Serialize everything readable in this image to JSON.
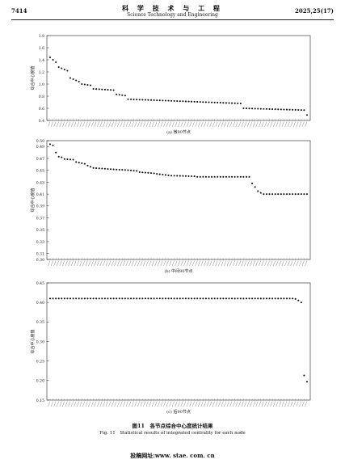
{
  "header": {
    "page_number": "7414",
    "journal_cn": "科 学 技 术 与 工 程",
    "journal_en": "Science Technology and Engineering",
    "issue": "2025,25(17)"
  },
  "figure": {
    "caption_zh": "图11　各节点综合中心度统计结果",
    "caption_en": "Fig. 11　Statistical results of integrated centrality for each node"
  },
  "footer": {
    "website": "投稿网址:www. stae. com. cn"
  },
  "chart_data": [
    {
      "type": "scatter",
      "title": "",
      "subtitle": "(a) 微90节点",
      "xlabel": "",
      "ylabel": "综合中心度值",
      "ylim": [
        0.4,
        1.8
      ],
      "yticks": [
        "0.4",
        "0.6",
        "0.8",
        "1.0",
        "1.2",
        "1.4",
        "1.6",
        "1.8"
      ],
      "n_points": 90,
      "grid": false,
      "segments": [
        {
          "count": 1,
          "from": 1.44,
          "to": 1.44
        },
        {
          "count": 2,
          "from": 1.4,
          "to": 1.36
        },
        {
          "count": 4,
          "from": 1.28,
          "to": 1.22
        },
        {
          "count": 4,
          "from": 1.1,
          "to": 1.04
        },
        {
          "count": 4,
          "from": 1.0,
          "to": 0.98
        },
        {
          "count": 8,
          "from": 0.92,
          "to": 0.9
        },
        {
          "count": 4,
          "from": 0.83,
          "to": 0.81
        },
        {
          "count": 40,
          "from": 0.75,
          "to": 0.68
        },
        {
          "count": 22,
          "from": 0.6,
          "to": 0.57
        },
        {
          "count": 1,
          "from": 0.49,
          "to": 0.49
        }
      ]
    },
    {
      "type": "scatter",
      "title": "",
      "subtitle": "(b) 中间90节点",
      "xlabel": "",
      "ylabel": "综合中心度值",
      "ylim": [
        0.3,
        0.5
      ],
      "yticks": [
        "0.30",
        "0.31",
        "0.33",
        "0.35",
        "0.37",
        "0.39",
        "0.41",
        "0.43",
        "0.45",
        "0.47",
        "0.49",
        "0.50"
      ],
      "n_points": 90,
      "grid": false,
      "segments": [
        {
          "count": 2,
          "from": 0.494,
          "to": 0.492
        },
        {
          "count": 1,
          "from": 0.48,
          "to": 0.48
        },
        {
          "count": 2,
          "from": 0.473,
          "to": 0.472
        },
        {
          "count": 4,
          "from": 0.469,
          "to": 0.468
        },
        {
          "count": 4,
          "from": 0.464,
          "to": 0.461
        },
        {
          "count": 2,
          "from": 0.458,
          "to": 0.456
        },
        {
          "count": 10,
          "from": 0.454,
          "to": 0.451
        },
        {
          "count": 6,
          "from": 0.451,
          "to": 0.449
        },
        {
          "count": 6,
          "from": 0.447,
          "to": 0.445
        },
        {
          "count": 6,
          "from": 0.444,
          "to": 0.441
        },
        {
          "count": 8,
          "from": 0.441,
          "to": 0.44
        },
        {
          "count": 19,
          "from": 0.439,
          "to": 0.439
        },
        {
          "count": 1,
          "from": 0.428,
          "to": 0.428
        },
        {
          "count": 1,
          "from": 0.422,
          "to": 0.422
        },
        {
          "count": 1,
          "from": 0.415,
          "to": 0.415
        },
        {
          "count": 1,
          "from": 0.412,
          "to": 0.412
        },
        {
          "count": 16,
          "from": 0.41,
          "to": 0.41
        }
      ]
    },
    {
      "type": "scatter",
      "title": "",
      "subtitle": "(c) 后90节点",
      "xlabel": "",
      "ylabel": "综合中心度值",
      "ylim": [
        0.15,
        0.45
      ],
      "yticks": [
        "0.15",
        "0.20",
        "0.25",
        "0.30",
        "0.35",
        "0.40",
        "0.45"
      ],
      "n_points": 90,
      "grid": false,
      "segments": [
        {
          "count": 85,
          "from": 0.41,
          "to": 0.41
        },
        {
          "count": 1,
          "from": 0.409,
          "to": 0.409
        },
        {
          "count": 1,
          "from": 0.405,
          "to": 0.405
        },
        {
          "count": 1,
          "from": 0.4,
          "to": 0.4
        },
        {
          "count": 1,
          "from": 0.213,
          "to": 0.213
        },
        {
          "count": 1,
          "from": 0.197,
          "to": 0.197
        }
      ]
    }
  ]
}
